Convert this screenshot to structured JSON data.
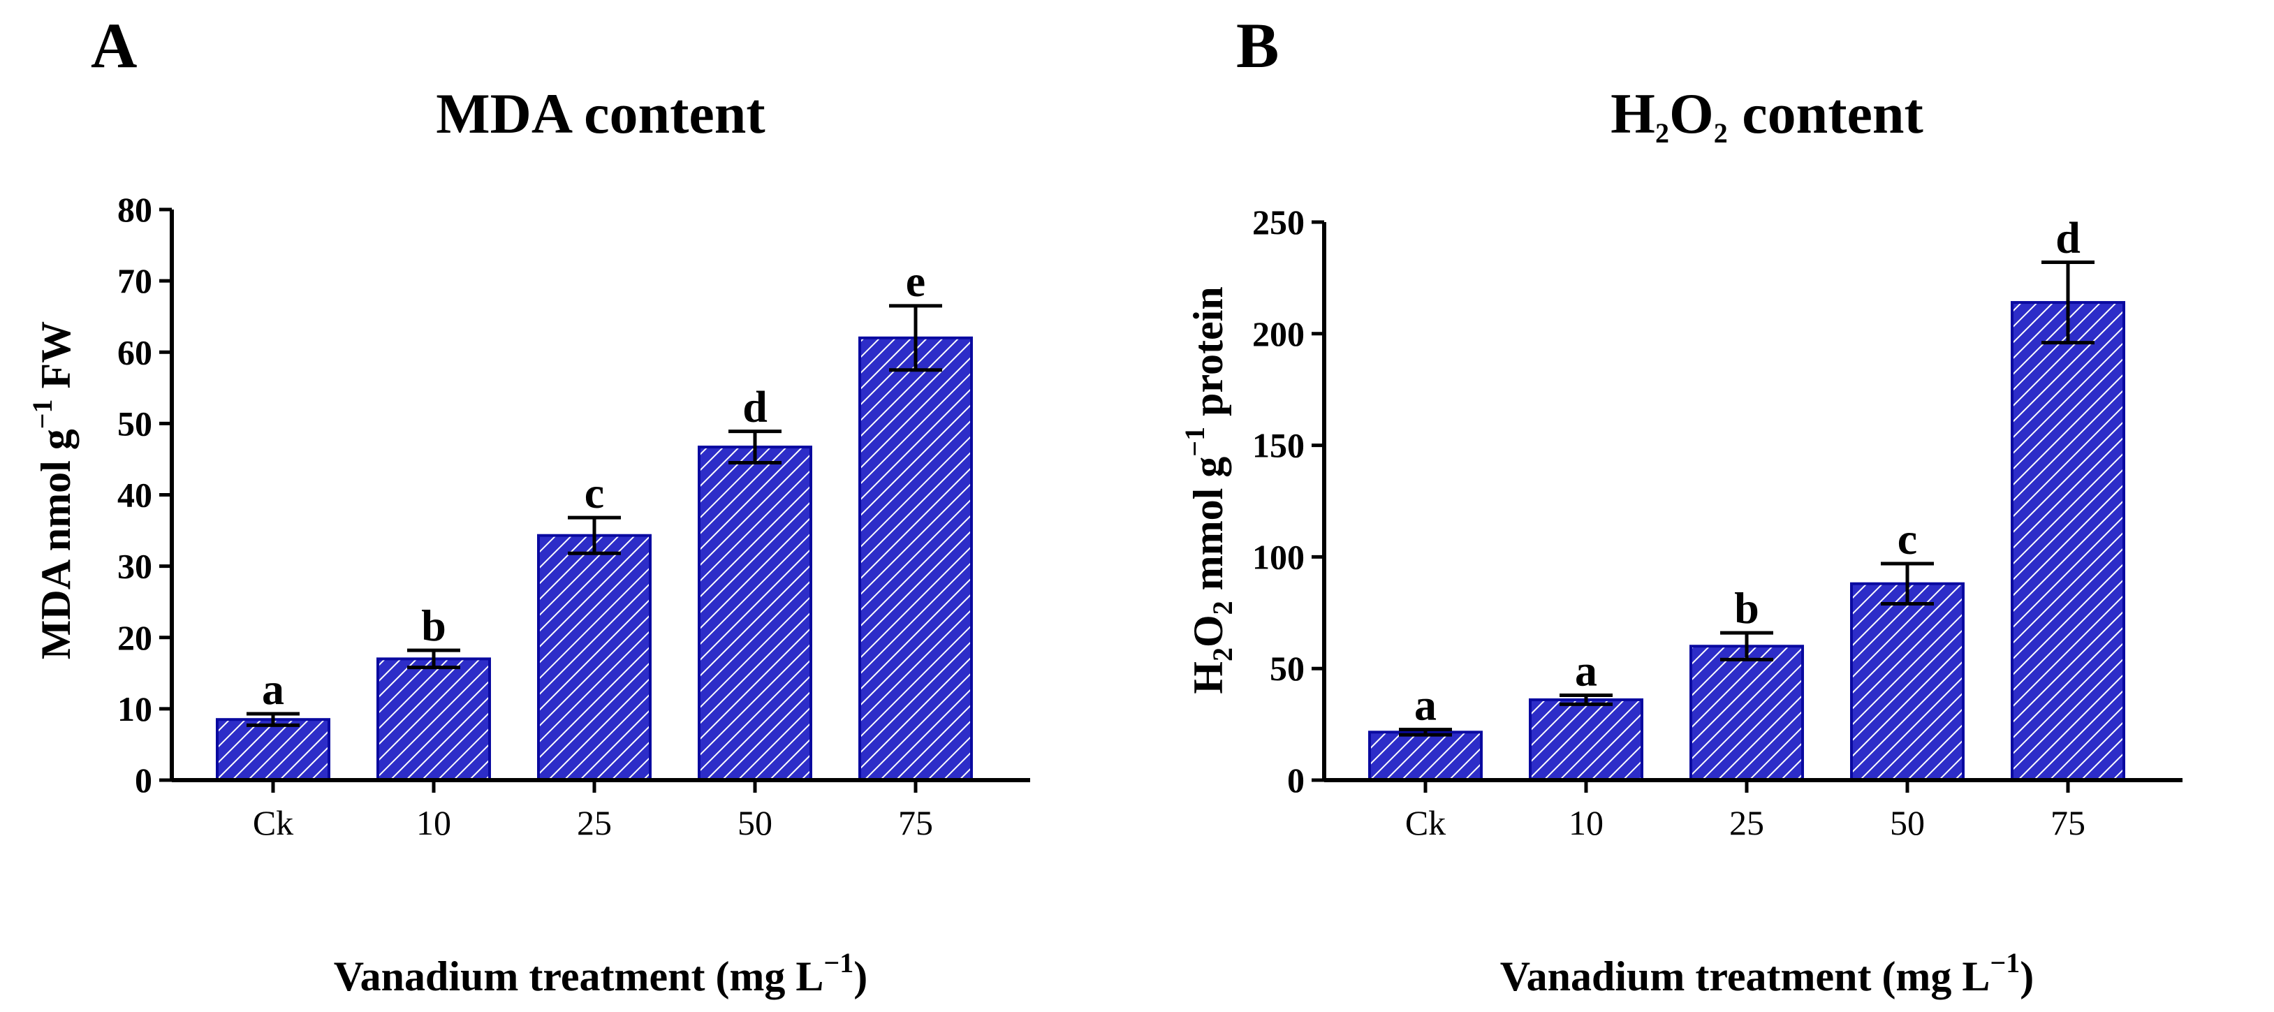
{
  "colors": {
    "bar_fill": "#2d2dc8",
    "bar_stroke": "#0a0aa0",
    "hatch": "#ffffff",
    "axis": "#000000"
  },
  "chart_data": [
    {
      "panel": "A",
      "type": "bar",
      "title": "MDA content",
      "xlabel": {
        "text": "Vanadium treatment (mg L",
        "sup": "−1",
        "tail": ")"
      },
      "ylabel": {
        "pre": "MDA nmol g",
        "sup": "−1",
        "tail": " FW"
      },
      "categories": [
        "Ck",
        "10",
        "25",
        "50",
        "75"
      ],
      "values": [
        8.5,
        17,
        34.3,
        46.7,
        62
      ],
      "errors": [
        0.8,
        1.2,
        2.5,
        2.2,
        4.5
      ],
      "letters": [
        "a",
        "b",
        "c",
        "d",
        "e"
      ],
      "ylim": [
        0,
        80
      ],
      "yticks": [
        0,
        10,
        20,
        30,
        40,
        50,
        60,
        70,
        80
      ]
    },
    {
      "panel": "B",
      "type": "bar",
      "title": {
        "pre": "H",
        "sub1": "2",
        "mid": "O",
        "sub2": "2",
        "tail": " content"
      },
      "xlabel": {
        "text": "Vanadium treatment (mg L",
        "sup": "−1",
        "tail": ")"
      },
      "ylabel": {
        "pre": "H",
        "sub1": "2",
        "mid": "O",
        "sub2": "2",
        "mid2": " mmol g",
        "sup": "−1",
        "tail": " protein"
      },
      "categories": [
        "Ck",
        "10",
        "25",
        "50",
        "75"
      ],
      "values": [
        21.5,
        36,
        60,
        88,
        214
      ],
      "errors": [
        1.2,
        2,
        6,
        9,
        18
      ],
      "letters": [
        "a",
        "a",
        "b",
        "c",
        "d"
      ],
      "ylim": [
        0,
        250
      ],
      "yticks": [
        0,
        50,
        100,
        150,
        200,
        250
      ]
    }
  ]
}
